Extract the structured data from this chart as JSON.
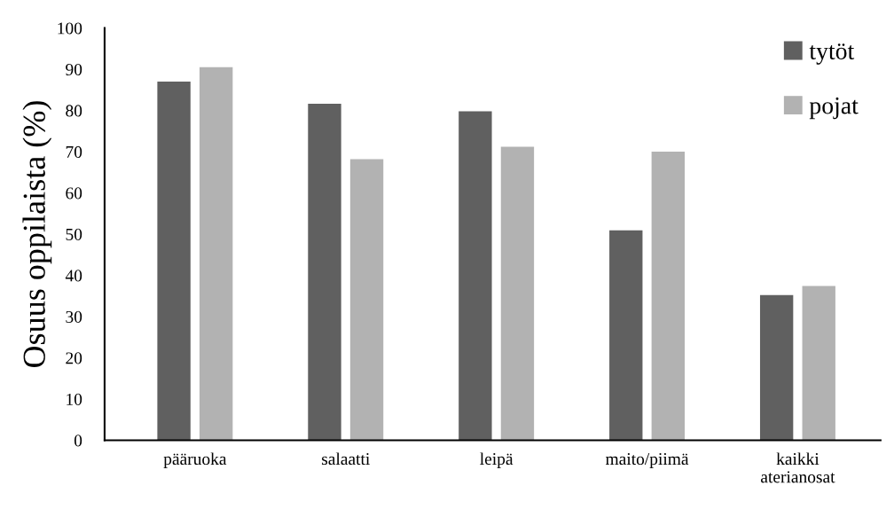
{
  "chart_data": {
    "type": "bar",
    "ylabel": "Osuus oppilaista (%)",
    "categories": [
      "pääruoka",
      "salaatti",
      "leipä",
      "maito/piimä",
      "kaikki\naterianosat"
    ],
    "series": [
      {
        "name": "tytöt",
        "color": "#606060",
        "values": [
          87.0,
          81.6,
          79.8,
          50.9,
          35.2
        ]
      },
      {
        "name": "pojat",
        "color": "#b2b2b2",
        "values": [
          90.5,
          68.2,
          71.2,
          70.0,
          37.4
        ]
      }
    ],
    "ylim": [
      0,
      100
    ],
    "yticks": [
      0,
      10,
      20,
      30,
      40,
      50,
      60,
      70,
      80,
      90,
      100
    ],
    "grid": false,
    "legend": "top right"
  }
}
